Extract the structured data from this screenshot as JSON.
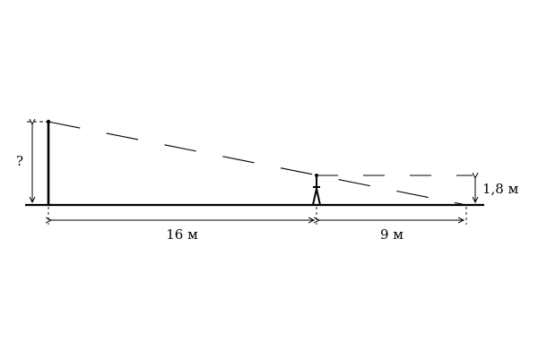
{
  "diagram": {
    "unknown_height_label": "?",
    "left_distance_label": "16 м",
    "right_distance_label": "9 м",
    "person_height_label": "1,8 м"
  }
}
